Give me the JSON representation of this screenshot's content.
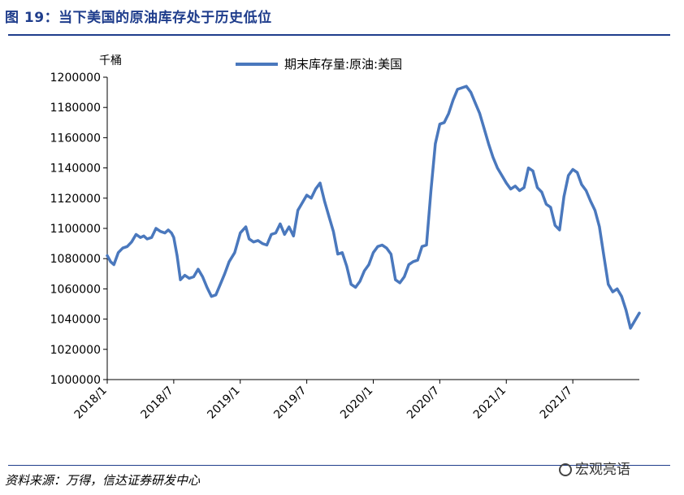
{
  "figure_title": "图 19：当下美国的原油库存处于历史低位",
  "source_note": "资料来源：万得，信达证券研发中心",
  "watermark": "宏观亮语",
  "colors": {
    "line": "#4a78bd",
    "title": "#1f3d8c",
    "rule": "#1f3d8c",
    "axis": "#000000"
  },
  "chart_data": {
    "type": "line",
    "unit_label": "千桶",
    "ylim": [
      1000000,
      1200000
    ],
    "yticks": [
      1000000,
      1020000,
      1040000,
      1060000,
      1080000,
      1100000,
      1120000,
      1140000,
      1160000,
      1180000,
      1200000
    ],
    "ytick_labels": [
      "1000000",
      "1020000",
      "1040000",
      "1060000",
      "1080000",
      "1100000",
      "1120000",
      "1140000",
      "1160000",
      "1180000",
      "1200000"
    ],
    "xlim": [
      0,
      48
    ],
    "xticks": [
      0,
      6,
      12,
      18,
      24,
      30,
      36,
      42
    ],
    "xtick_labels": [
      "2018/1",
      "2018/7",
      "2019/1",
      "2019/7",
      "2020/1",
      "2020/7",
      "2021/1",
      "2021/7"
    ],
    "grid": false,
    "legend_position": "top-center",
    "series": [
      {
        "name": "期末库存量:原油:美国",
        "x": [
          0,
          0.3,
          0.6,
          1.0,
          1.4,
          1.8,
          2.2,
          2.6,
          3.0,
          3.3,
          3.6,
          4.0,
          4.4,
          4.8,
          5.2,
          5.5,
          5.8,
          6.0,
          6.3,
          6.6,
          7.0,
          7.4,
          7.8,
          8.2,
          8.6,
          9.0,
          9.4,
          9.8,
          10.2,
          10.6,
          11.0,
          11.5,
          12.0,
          12.5,
          12.8,
          13.2,
          13.6,
          14.0,
          14.4,
          14.8,
          15.2,
          15.6,
          16.0,
          16.4,
          16.8,
          17.2,
          17.6,
          18.0,
          18.4,
          18.8,
          19.2,
          19.6,
          20.0,
          20.4,
          20.8,
          21.2,
          21.6,
          22.0,
          22.4,
          22.8,
          23.2,
          23.6,
          24.0,
          24.4,
          24.8,
          25.2,
          25.6,
          26.0,
          26.4,
          26.8,
          27.2,
          27.6,
          28.0,
          28.4,
          28.8,
          29.2,
          29.6,
          30.0,
          30.4,
          30.8,
          31.2,
          31.6,
          32.0,
          32.4,
          32.8,
          33.2,
          33.6,
          34.0,
          34.4,
          34.8,
          35.2,
          35.6,
          36.0,
          36.4,
          36.8,
          37.2,
          37.6,
          38.0,
          38.4,
          38.8,
          39.2,
          39.6,
          40.0,
          40.4,
          40.8,
          41.2,
          41.6,
          42.0,
          42.4,
          42.8,
          43.2,
          43.6,
          44.0,
          44.4,
          44.8,
          45.2,
          45.6,
          46.0,
          46.4,
          46.8,
          47.2,
          47.6,
          48.0
        ],
        "values": [
          1082000,
          1078000,
          1076000,
          1084000,
          1087000,
          1088000,
          1091000,
          1096000,
          1094000,
          1095000,
          1093000,
          1094000,
          1100000,
          1098000,
          1097000,
          1099000,
          1097000,
          1094000,
          1082000,
          1066000,
          1069000,
          1067000,
          1068000,
          1073000,
          1068000,
          1061000,
          1055000,
          1056000,
          1063000,
          1070000,
          1078000,
          1084000,
          1097000,
          1101000,
          1093000,
          1091000,
          1092000,
          1090000,
          1089000,
          1096000,
          1097000,
          1103000,
          1096000,
          1101000,
          1095000,
          1112000,
          1117000,
          1122000,
          1120000,
          1126000,
          1130000,
          1118000,
          1108000,
          1098000,
          1083000,
          1084000,
          1075000,
          1063000,
          1061000,
          1065000,
          1072000,
          1076000,
          1084000,
          1088000,
          1089000,
          1087000,
          1083000,
          1066000,
          1064000,
          1068000,
          1076000,
          1078000,
          1079000,
          1088000,
          1089000,
          1125000,
          1156000,
          1169000,
          1170000,
          1176000,
          1185000,
          1192000,
          1193000,
          1194000,
          1190000,
          1183000,
          1176000,
          1166000,
          1156000,
          1147000,
          1140000,
          1135000,
          1130000,
          1126000,
          1128000,
          1125000,
          1127000,
          1140000,
          1138000,
          1127000,
          1124000,
          1116000,
          1114000,
          1102000,
          1099000,
          1121000,
          1135000,
          1139000,
          1137000,
          1129000,
          1125000,
          1118000,
          1112000,
          1101000,
          1082000,
          1063000,
          1058000,
          1060000,
          1055000,
          1046000,
          1034000,
          1039000,
          1044000
        ]
      }
    ]
  }
}
